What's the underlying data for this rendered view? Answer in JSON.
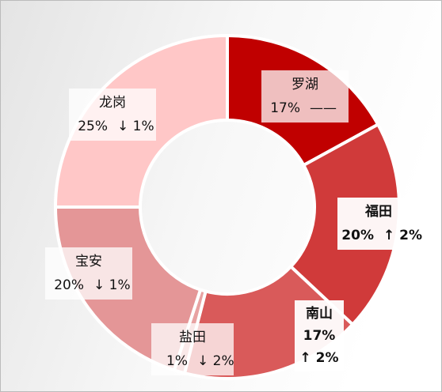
{
  "chart_data": {
    "type": "donut",
    "categories": [
      "罗湖",
      "福田",
      "南山",
      "盐田",
      "宝安",
      "龙岗"
    ],
    "values": [
      17,
      20,
      17,
      1,
      20,
      25
    ],
    "value_labels": [
      "17%",
      "20%",
      "17%",
      "1%",
      "20%",
      "25%"
    ],
    "changes": [
      "——",
      "↑ 2%",
      "↑ 2%",
      "↓ 2%",
      "↓ 1%",
      "↓ 1%"
    ],
    "colors": [
      "#c00000",
      "#d03a3a",
      "#d95a5a",
      "#e8a2a2",
      "#e49697",
      "#ffc7c7"
    ]
  }
}
